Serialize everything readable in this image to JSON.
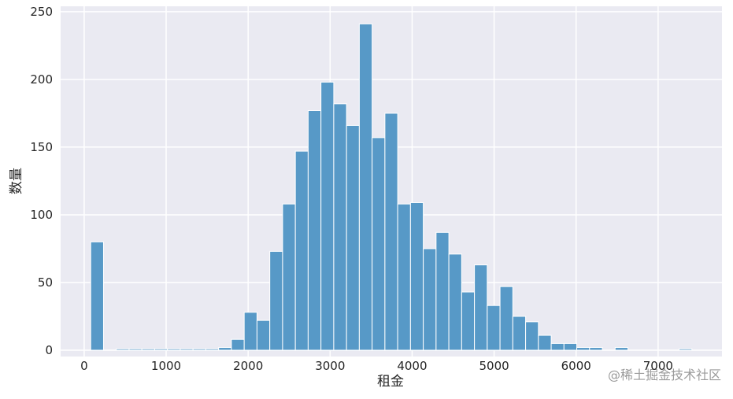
{
  "chart_data": {
    "type": "histogram",
    "xlabel": "租金",
    "ylabel": "数量",
    "watermark": "@稀土掘金技术社区",
    "bins": [
      80,
      236,
      392,
      548,
      704,
      860,
      1016,
      1172,
      1328,
      1484,
      1640,
      1796,
      1952,
      2108,
      2264,
      2420,
      2576,
      2732,
      2888,
      3044,
      3200,
      3356,
      3512,
      3668,
      3824,
      3980,
      4136,
      4292,
      4448,
      4604,
      4760,
      4916,
      5072,
      5228,
      5384,
      5540,
      5696,
      5852,
      6008,
      6164,
      6320,
      6476,
      6632,
      6788,
      6944,
      7100,
      7256,
      7412
    ],
    "values": [
      80,
      0,
      1,
      1,
      1,
      1,
      1,
      1,
      1,
      1,
      2,
      8,
      28,
      22,
      73,
      108,
      147,
      177,
      198,
      182,
      166,
      241,
      157,
      175,
      108,
      109,
      75,
      87,
      71,
      43,
      63,
      33,
      47,
      25,
      21,
      11,
      5,
      5,
      2,
      2,
      0,
      2,
      0,
      0,
      0,
      0,
      1
    ],
    "color": "#5799c7",
    "xlim": [
      -287,
      7779
    ],
    "xticks": [
      0,
      1000,
      2000,
      3000,
      4000,
      5000,
      6000,
      7000
    ],
    "ylim": [
      0,
      254
    ],
    "yticks": [
      0,
      50,
      100,
      150,
      200,
      250
    ],
    "grid": true
  }
}
